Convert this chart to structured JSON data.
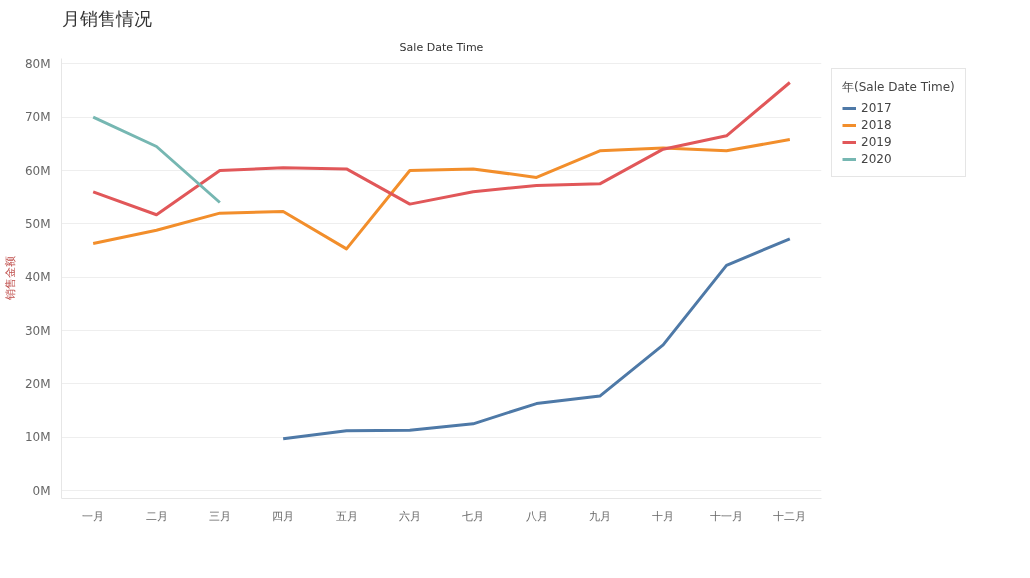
{
  "chart_data": {
    "type": "line",
    "title": "月销售情况",
    "xlabel": "Sale Date Time",
    "ylabel": "销售金额",
    "legend_title": "年(Sale Date Time)",
    "categories": [
      "一月",
      "二月",
      "三月",
      "四月",
      "五月",
      "六月",
      "七月",
      "八月",
      "九月",
      "十月",
      "十一月",
      "十二月"
    ],
    "series": [
      {
        "name": "2017",
        "color": "#4e79a7",
        "values": [
          null,
          null,
          null,
          9.7,
          11.2,
          11.3,
          12.5,
          16.3,
          17.7,
          27.3,
          42.2,
          47.2
        ]
      },
      {
        "name": "2018",
        "color": "#f28e2b",
        "values": [
          46.3,
          48.8,
          52.0,
          52.3,
          45.3,
          60.0,
          60.3,
          58.7,
          63.7,
          64.2,
          63.7,
          65.8
        ]
      },
      {
        "name": "2019",
        "color": "#e15759",
        "values": [
          56.0,
          51.7,
          60.0,
          60.5,
          60.3,
          53.7,
          56.0,
          57.2,
          57.5,
          64.0,
          66.5,
          76.5
        ]
      },
      {
        "name": "2020",
        "color": "#76b7b2",
        "values": [
          70.0,
          64.5,
          54.0,
          null,
          null,
          null,
          null,
          null,
          null,
          null,
          null,
          null
        ]
      }
    ],
    "ylim": [
      -1.5,
      81
    ],
    "yticks": [
      {
        "value": 0,
        "label": "0M"
      },
      {
        "value": 10,
        "label": "10M"
      },
      {
        "value": 20,
        "label": "20M"
      },
      {
        "value": 30,
        "label": "30M"
      },
      {
        "value": 40,
        "label": "40M"
      },
      {
        "value": 50,
        "label": "50M"
      },
      {
        "value": 60,
        "label": "60M"
      },
      {
        "value": 70,
        "label": "70M"
      },
      {
        "value": 80,
        "label": "80M"
      }
    ],
    "grid": "y",
    "legend": "top right",
    "marker": "none",
    "line_style": "solid"
  }
}
